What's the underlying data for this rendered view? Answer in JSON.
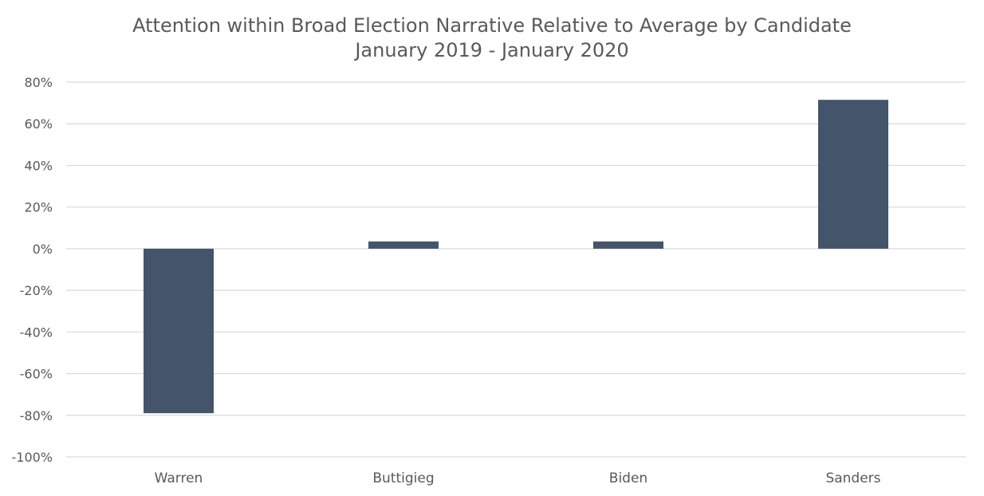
{
  "chart_data": {
    "type": "bar",
    "title": "Attention within Broad Election Narrative Relative to Average by Candidate",
    "subtitle": "January 2019 - January 2020",
    "categories": [
      "Warren",
      "Buttigieg",
      "Biden",
      "Sanders"
    ],
    "values": [
      -79,
      3.5,
      3.5,
      71.5
    ],
    "ylim": [
      -100,
      80
    ],
    "yticks": [
      80,
      60,
      40,
      20,
      0,
      -20,
      -40,
      -60,
      -80,
      -100
    ],
    "ytick_labels": [
      "80%",
      "60%",
      "40%",
      "20%",
      "0%",
      "-20%",
      "-40%",
      "-60%",
      "-80%",
      "-100%"
    ],
    "xlabel": "",
    "ylabel": "",
    "grid": true,
    "legend": "none",
    "bar_color": "#44546a"
  }
}
